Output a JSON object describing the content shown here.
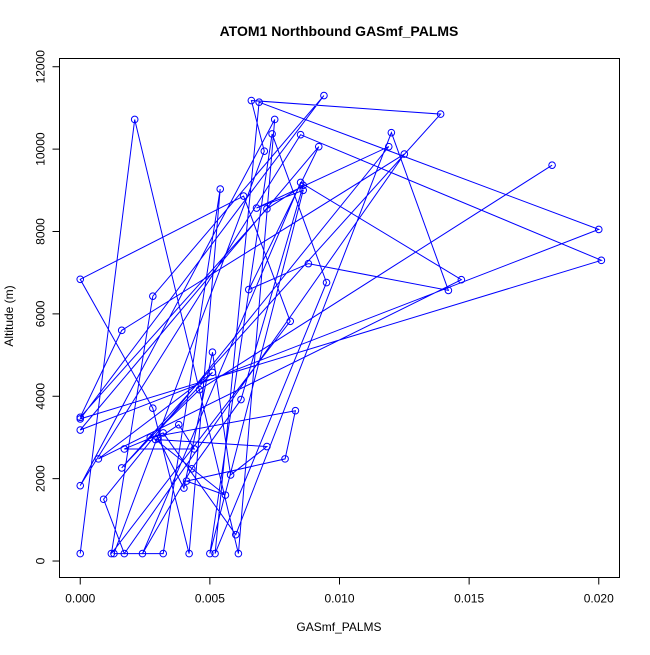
{
  "chart_data": {
    "type": "line",
    "title": "ATOM1 Northbound GASmf_PALMS",
    "xlabel": "GASmf_PALMS",
    "ylabel": "Altitude (m)",
    "xlim": [
      -0.0008,
      0.0208
    ],
    "ylim": [
      -400,
      12200
    ],
    "x_ticks": [
      0,
      0.005,
      0.01,
      0.015,
      0.02
    ],
    "x_tick_labels": [
      "0.000",
      "0.005",
      "0.010",
      "0.015",
      "0.020"
    ],
    "y_ticks": [
      0,
      2000,
      4000,
      6000,
      8000,
      10000,
      12000
    ],
    "y_tick_labels": [
      "0",
      "2000",
      "4000",
      "6000",
      "8000",
      "10000",
      "12000"
    ],
    "grid": false,
    "legend": "none",
    "series": [
      {
        "color": "#0000ff",
        "marker": "open-circle",
        "x": [
          0.0,
          0.0021,
          0.0061,
          0.0075,
          0.0,
          0.0085,
          0.0201,
          0.0,
          0.0094,
          0.0028,
          0.0012,
          0.0081,
          0.0063,
          0.0,
          0.0028,
          0.0042,
          0.0054,
          0.0032,
          0.0013,
          0.0071,
          0.0066,
          0.0139,
          0.0016,
          0.0051,
          0.0007,
          0.0147,
          0.0085,
          0.0024,
          0.0043,
          0.0062,
          0.0086,
          0.0072,
          0.0,
          0.0016,
          0.0125,
          0.0017,
          0.0009,
          0.0119,
          0.0068,
          0.0086,
          0.005,
          0.0074,
          0.0095,
          0.0052,
          0.0069,
          0.02,
          0.0,
          0.0092,
          0.0065,
          0.0088,
          0.0142,
          0.012,
          0.006,
          0.0032,
          0.0017,
          0.0044,
          0.0038,
          0.003,
          0.004,
          0.0051,
          0.0058,
          0.0072,
          0.0029,
          0.0056,
          0.0041,
          0.0079,
          0.0083,
          0.0027,
          0.0046,
          0.0182
        ],
        "y": [
          180,
          10720,
          180,
          10720,
          1830,
          10350,
          7300,
          3450,
          11300,
          6430,
          180,
          5820,
          8860,
          6840,
          3710,
          180,
          9030,
          180,
          180,
          9950,
          11180,
          10850,
          2260,
          4580,
          2480,
          6830,
          9190,
          180,
          2240,
          3920,
          9120,
          8550,
          3490,
          5600,
          9880,
          180,
          1500,
          10060,
          8570,
          9000,
          180,
          10370,
          6760,
          180,
          11140,
          8050,
          3180,
          10060,
          6590,
          7220,
          6570,
          10400,
          640,
          3110,
          2720,
          2720,
          3310,
          2980,
          1770,
          5070,
          2090,
          2780,
          2950,
          1600,
          1940,
          2480,
          3650,
          3000,
          4160,
          9610
        ]
      }
    ]
  }
}
